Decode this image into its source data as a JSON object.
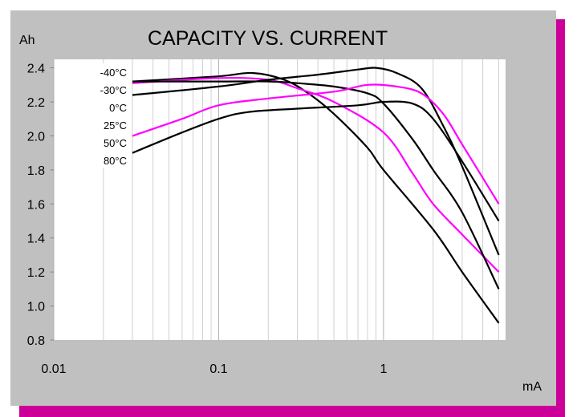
{
  "chart_data": {
    "type": "line",
    "title": "CAPACITY VS. CURRENT",
    "ylabel": "Ah",
    "xlabel": "mA",
    "x_scale": "log",
    "xlim": [
      0.01,
      5.5
    ],
    "ylim": [
      0.8,
      2.45
    ],
    "x_ticks": [
      {
        "v": 0.01,
        "label": "0.01"
      },
      {
        "v": 0.1,
        "label": "0.1"
      },
      {
        "v": 1,
        "label": "1"
      }
    ],
    "y_ticks": [
      {
        "v": 0.8,
        "label": "0.8"
      },
      {
        "v": 1.0,
        "label": "1.0"
      },
      {
        "v": 1.2,
        "label": "1.2"
      },
      {
        "v": 1.4,
        "label": "1.4"
      },
      {
        "v": 1.6,
        "label": "1.6"
      },
      {
        "v": 1.8,
        "label": "1.8"
      },
      {
        "v": 2.0,
        "label": "2.0"
      },
      {
        "v": 2.2,
        "label": "2.2"
      },
      {
        "v": 2.4,
        "label": "2.4"
      }
    ],
    "grid": true,
    "legend_labels": [
      "-40°C",
      "-30°C",
      "0°C",
      "25°C",
      "50°C",
      "80°C"
    ],
    "series": [
      {
        "name": "-40°C",
        "color": "#000000",
        "points": [
          [
            0.03,
            2.32
          ],
          [
            0.1,
            2.35
          ],
          [
            0.16,
            2.37
          ],
          [
            0.25,
            2.33
          ],
          [
            0.35,
            2.25
          ],
          [
            0.5,
            2.13
          ],
          [
            0.8,
            1.93
          ],
          [
            1,
            1.8
          ],
          [
            2,
            1.45
          ],
          [
            3,
            1.2
          ],
          [
            5,
            0.9
          ]
        ]
      },
      {
        "name": "-30°C",
        "color": "#ff00ff",
        "points": [
          [
            0.03,
            2.31
          ],
          [
            0.1,
            2.34
          ],
          [
            0.2,
            2.33
          ],
          [
            0.3,
            2.28
          ],
          [
            0.5,
            2.2
          ],
          [
            1,
            2.02
          ],
          [
            1.5,
            1.78
          ],
          [
            2,
            1.6
          ],
          [
            3,
            1.42
          ],
          [
            5,
            1.2
          ]
        ]
      },
      {
        "name": "0°C",
        "color": "#000000",
        "points": [
          [
            0.03,
            2.32
          ],
          [
            0.1,
            2.32
          ],
          [
            0.2,
            2.32
          ],
          [
            0.3,
            2.31
          ],
          [
            0.5,
            2.29
          ],
          [
            0.8,
            2.25
          ],
          [
            1,
            2.19
          ],
          [
            1.5,
            1.98
          ],
          [
            2,
            1.8
          ],
          [
            3,
            1.55
          ],
          [
            5,
            1.1
          ]
        ]
      },
      {
        "name": "25°C",
        "color": "#000000",
        "points": [
          [
            0.03,
            2.24
          ],
          [
            0.1,
            2.29
          ],
          [
            0.2,
            2.33
          ],
          [
            0.4,
            2.36
          ],
          [
            0.7,
            2.39
          ],
          [
            0.9,
            2.4
          ],
          [
            1.2,
            2.37
          ],
          [
            1.7,
            2.28
          ],
          [
            2.3,
            2.06
          ],
          [
            3,
            1.82
          ],
          [
            5,
            1.3
          ]
        ]
      },
      {
        "name": "50°C",
        "color": "#ff00ff",
        "points": [
          [
            0.03,
            2.0
          ],
          [
            0.06,
            2.1
          ],
          [
            0.1,
            2.18
          ],
          [
            0.2,
            2.22
          ],
          [
            0.5,
            2.26
          ],
          [
            0.8,
            2.3
          ],
          [
            1.2,
            2.29
          ],
          [
            1.7,
            2.25
          ],
          [
            2.3,
            2.13
          ],
          [
            3,
            1.95
          ],
          [
            5,
            1.6
          ]
        ]
      },
      {
        "name": "80°C",
        "color": "#000000",
        "points": [
          [
            0.03,
            1.9
          ],
          [
            0.06,
            2.02
          ],
          [
            0.1,
            2.1
          ],
          [
            0.15,
            2.14
          ],
          [
            0.3,
            2.16
          ],
          [
            0.7,
            2.18
          ],
          [
            1,
            2.2
          ],
          [
            1.5,
            2.19
          ],
          [
            2,
            2.1
          ],
          [
            3,
            1.85
          ],
          [
            5,
            1.5
          ]
        ]
      }
    ]
  }
}
